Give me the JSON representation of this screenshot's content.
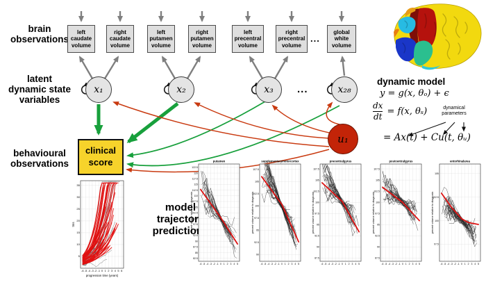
{
  "colors": {
    "box_fill": "#dedede",
    "box_border": "#4a4a4a",
    "node_fill": "#e4e4e4",
    "u1_fill": "#c32408",
    "clinical_fill": "#f7d32b",
    "gray_arrow": "#7f7f7f",
    "green_arrow": "#18a03c",
    "red_arrow": "#c93a10",
    "trend_red": "#dd1111",
    "tms_red": "#e01010",
    "spaghetti": "#222222"
  },
  "labels": {
    "brain_observations": "brain\nobservations",
    "latent": "latent\ndynamic state\nvariables",
    "behavioural": "behavioural\nobservations",
    "model_traj": "model\ntrajectory\npredictions",
    "dots_boxes": "...",
    "dots_nodes": "..."
  },
  "obs_boxes": [
    {
      "label": "left\ncaudate\nvolume"
    },
    {
      "label": "right\ncaudate\nvolume"
    },
    {
      "label": "left\nputamen\nvolume"
    },
    {
      "label": "right\nputamen\nvolume"
    },
    {
      "label": "left\nprecentral\nvolume"
    },
    {
      "label": "right\nprecentral\nvolume"
    },
    {
      "label": "global\nwhite\nvolume"
    }
  ],
  "nodes": [
    {
      "label": "x₁"
    },
    {
      "label": "x₂"
    },
    {
      "label": "x₃"
    },
    {
      "label": "x₂₈"
    }
  ],
  "input_node": {
    "label": "u₁"
  },
  "clinical_box": {
    "label": "clinical\nscore"
  },
  "dynamic_model": {
    "heading": "dynamic model",
    "eq1": "y = g(x, θₒ) + ϵ",
    "frac_num": "dx",
    "frac_den": "dt",
    "eq2_rhs": "= f(x, θₛ)",
    "annotation": "dynamical\nparameters",
    "eq3": "= Ax(t) + Cu(t, θᵤ)"
  },
  "chart_data": [
    {
      "kind": "growth",
      "type": "line",
      "title": "",
      "xlabel": "progression time (years)",
      "ylabel": "tms",
      "xlim": [
        -6.6,
        6.6
      ],
      "ylim": [
        0,
        37
      ],
      "xticks": [
        -6,
        -5,
        -4,
        -3,
        -2,
        -1,
        0,
        1,
        2,
        3,
        4,
        5,
        6
      ],
      "yticks": [
        5,
        10,
        15,
        20,
        25,
        30,
        35
      ],
      "legend": "none",
      "grid": true,
      "description": "individual tms trajectories (gray) with model-predicted exponential fits (red) rising with progression time",
      "n_gray": 28,
      "n_red": 40,
      "seed": 11
    },
    {
      "kind": "region",
      "type": "line",
      "title": "putamen",
      "xlabel": "",
      "ylabel": "percent volume relative to diagnosis",
      "xlim": [
        -6.6,
        5.6
      ],
      "ylim": [
        81.2,
        124
      ],
      "xticks": [
        -6,
        -5,
        -4,
        -3,
        -2,
        -1,
        0,
        1,
        2,
        3,
        4,
        5
      ],
      "yticks": [
        82.5,
        85,
        87.5,
        90,
        92.5,
        95,
        97.5,
        100,
        102.5,
        105,
        107.5,
        110,
        112.5,
        115,
        117.5,
        120,
        122.5
      ],
      "grid": true,
      "red": [
        [
          -6,
          112.8
        ],
        [
          0,
          100.4
        ],
        [
          5,
          88.8
        ]
      ],
      "n_lines": 26,
      "seed": 21
    },
    {
      "kind": "region",
      "type": "line",
      "title": "supplementarymotorcortex",
      "xlabel": "",
      "ylabel": "percent volume relative to diagnosis",
      "xlim": [
        -6.6,
        5.6
      ],
      "ylim": [
        88.6,
        108.6
      ],
      "xticks": [
        -6,
        -5,
        -4,
        -3,
        -2,
        -1,
        0,
        1,
        2,
        3,
        4,
        5
      ],
      "yticks": [
        90,
        92.5,
        95,
        97.5,
        100,
        102.5,
        105,
        107.5
      ],
      "grid": true,
      "red": [
        [
          -6,
          106
        ],
        [
          0,
          100.3
        ],
        [
          5,
          92.6
        ]
      ],
      "n_lines": 30,
      "seed": 31
    },
    {
      "kind": "region",
      "type": "line",
      "title": "precentralgyrus",
      "xlabel": "",
      "ylabel": "percent volume relative to diagnosis",
      "xlim": [
        -6.6,
        5.6
      ],
      "ylim": [
        86.8,
        108.6
      ],
      "xticks": [
        -6,
        -5,
        -4,
        -3,
        -2,
        -1,
        0,
        1,
        2,
        3,
        4,
        5
      ],
      "yticks": [
        87.5,
        90,
        92.5,
        95,
        97.5,
        100,
        102.5,
        105,
        107.5
      ],
      "grid": true,
      "red": [
        [
          -6,
          104.4
        ],
        [
          0,
          100.2
        ],
        [
          5,
          93.4
        ]
      ],
      "n_lines": 30,
      "seed": 41
    },
    {
      "kind": "region",
      "type": "line",
      "title": "postcentralgyrus",
      "xlabel": "",
      "ylabel": "percent volume relative to diagnosis",
      "xlim": [
        -6.6,
        5.6
      ],
      "ylim": [
        86.8,
        108.6
      ],
      "xticks": [
        -6,
        -5,
        -4,
        -3,
        -2,
        -1,
        0,
        1,
        2,
        3,
        4,
        5
      ],
      "yticks": [
        87.5,
        90,
        92.5,
        95,
        97.5,
        100,
        102.5,
        105,
        107.5
      ],
      "grid": true,
      "red": [
        [
          -6,
          103.4
        ],
        [
          0,
          100
        ],
        [
          5,
          95.9
        ]
      ],
      "n_lines": 30,
      "seed": 51
    },
    {
      "kind": "region",
      "type": "line",
      "title": "entorhinalarea",
      "xlabel": "",
      "ylabel": "percent volume relative to diagnosis",
      "xlim": [
        -6.6,
        5.6
      ],
      "ylim": [
        95.7,
        106
      ],
      "xticks": [
        -6,
        -5,
        -4,
        -3,
        -2,
        -1,
        0,
        1,
        2,
        3,
        4,
        5
      ],
      "yticks": [
        97.5,
        100,
        102.5,
        105
      ],
      "grid": true,
      "red": [
        [
          -6,
          102.9
        ],
        [
          -3,
          101.4
        ],
        [
          0,
          100.2
        ],
        [
          2,
          99.8
        ],
        [
          5,
          99.6
        ]
      ],
      "n_lines": 30,
      "seed": 61
    }
  ]
}
